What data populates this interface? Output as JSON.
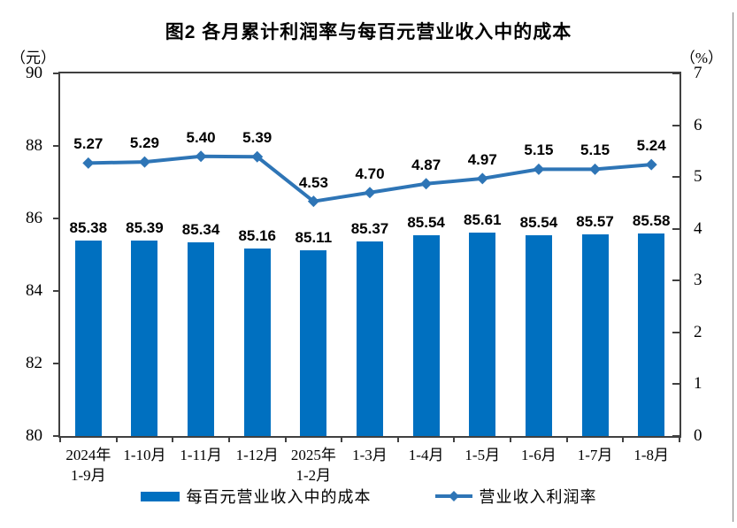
{
  "chart_data": {
    "type": "combo",
    "title": "图2  各月累计利润率与每百元营业收入中的成本",
    "categories": [
      "2024年\n1-9月",
      "1-10月",
      "1-11月",
      "1-12月",
      "2025年\n1-2月",
      "1-3月",
      "1-4月",
      "1-5月",
      "1-6月",
      "1-7月",
      "1-8月"
    ],
    "series": [
      {
        "name": "每百元营业收入中的成本",
        "type": "bar",
        "axis": "left",
        "color": "#0070C0",
        "values": [
          85.38,
          85.39,
          85.34,
          85.16,
          85.11,
          85.37,
          85.54,
          85.61,
          85.54,
          85.57,
          85.58
        ]
      },
      {
        "name": "营业收入利润率",
        "type": "line",
        "axis": "right",
        "color": "#2E75B6",
        "marker": "diamond",
        "values": [
          5.27,
          5.29,
          5.4,
          5.39,
          4.53,
          4.7,
          4.87,
          4.97,
          5.15,
          5.15,
          5.24
        ]
      }
    ],
    "left_axis": {
      "unit": "（元）",
      "min": 80,
      "max": 90,
      "ticks": [
        90,
        88,
        86,
        84,
        82,
        80
      ]
    },
    "right_axis": {
      "unit": "（%）",
      "min": 0,
      "max": 7,
      "ticks": [
        7,
        6,
        5,
        4,
        3,
        2,
        1,
        0
      ]
    },
    "grid": false,
    "data_labels": true,
    "value_label_decimals": 2,
    "legend_position": "bottom",
    "frame_color": "#404040"
  }
}
